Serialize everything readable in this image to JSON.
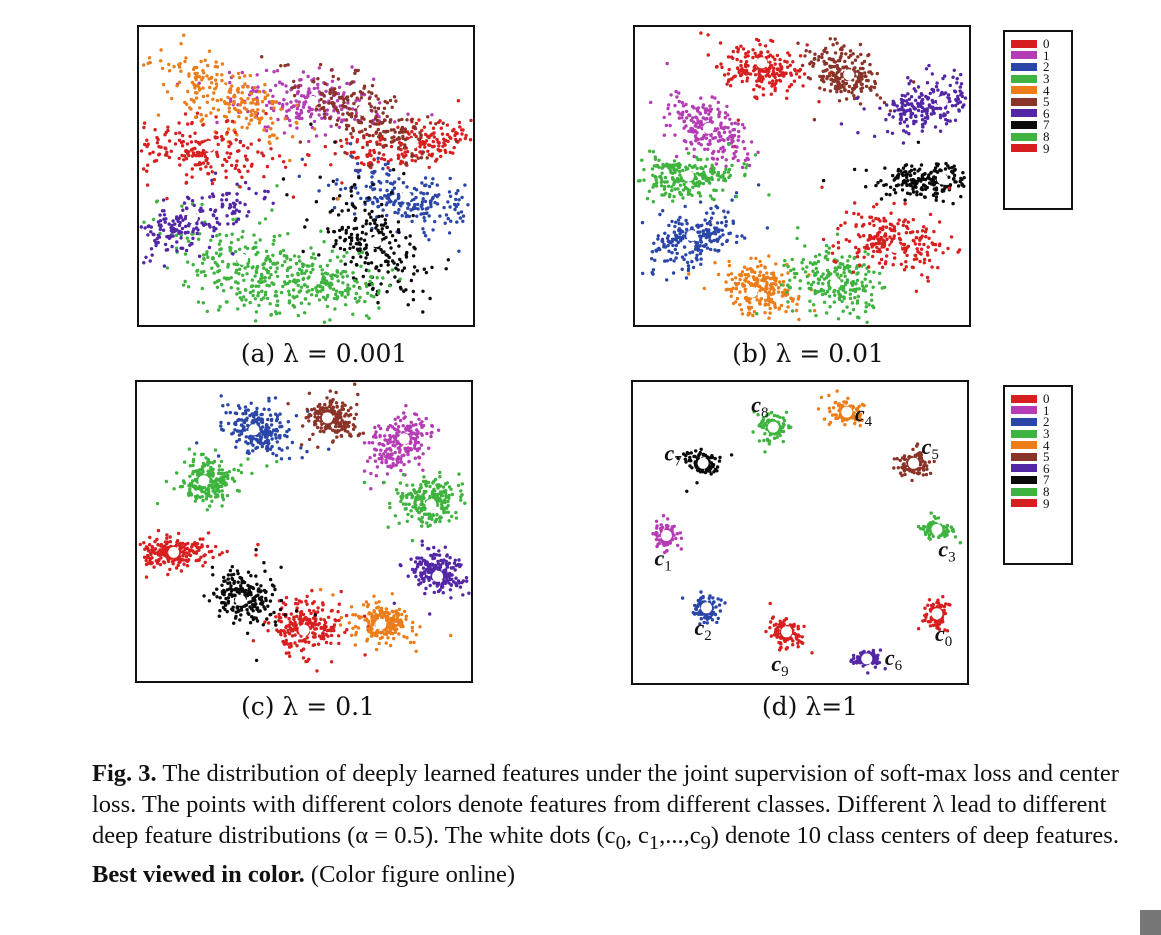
{
  "colors": {
    "0": "#d81f1f",
    "1": "#b43cb4",
    "2": "#2a46a8",
    "3": "#3fb33f",
    "4": "#ec7d18",
    "5": "#8a3328",
    "6": "#5326a5",
    "7": "#0a0a0a",
    "8": "#3fb33f",
    "9": "#d81f1f"
  },
  "legend": {
    "labels": [
      "0",
      "1",
      "2",
      "3",
      "4",
      "5",
      "6",
      "7",
      "8",
      "9"
    ]
  },
  "captions": {
    "a": "(a)  λ = 0.001",
    "b": "(b)  λ = 0.01",
    "c": "(c)  λ = 0.1",
    "d": "(d)  λ=1"
  },
  "figure_caption": {
    "label": "Fig. 3.",
    "text1": " The distribution of deeply learned features under the joint supervision of soft-max loss and center loss. The points with different colors denote features from different classes. Different λ lead to different deep feature distributions (α = 0.5). The white dots (c",
    "sub0": "0",
    "text2": ", c",
    "sub1": "1",
    "text3": ",...,c",
    "sub9": "9",
    "text4": ") denote 10 class centers of deep features. ",
    "bold_tail": "Best viewed in color.",
    "text5": " (Color figure online)"
  },
  "chart_data": [
    {
      "type": "scatter",
      "title": "(a) λ = 0.001",
      "legend": "none",
      "grid": false,
      "series": [
        {
          "name": "0",
          "center": [
            0.82,
            0.39
          ],
          "spread": [
            0.12,
            0.035
          ],
          "angle": -8
        },
        {
          "name": "1",
          "center": [
            0.51,
            0.26
          ],
          "spread": [
            0.05,
            0.12
          ],
          "angle": -85
        },
        {
          "name": "2",
          "center": [
            0.8,
            0.58
          ],
          "spread": [
            0.11,
            0.045
          ],
          "angle": 20
        },
        {
          "name": "3",
          "center": [
            0.31,
            0.8
          ],
          "spread": [
            0.07,
            0.12
          ],
          "angle": -60
        },
        {
          "name": "4",
          "center": [
            0.25,
            0.23
          ],
          "spread": [
            0.11,
            0.05
          ],
          "angle": 35
        },
        {
          "name": "5",
          "center": [
            0.67,
            0.29
          ],
          "spread": [
            0.045,
            0.11
          ],
          "angle": -55
        },
        {
          "name": "6",
          "center": [
            0.14,
            0.66
          ],
          "spread": [
            0.11,
            0.04
          ],
          "angle": -25
        },
        {
          "name": "7",
          "center": [
            0.7,
            0.72
          ],
          "spread": [
            0.06,
            0.12
          ],
          "angle": -35
        },
        {
          "name": "8",
          "center": [
            0.52,
            0.86
          ],
          "spread": [
            0.05,
            0.13
          ],
          "angle": -82
        },
        {
          "name": "9",
          "center": [
            0.17,
            0.42
          ],
          "spread": [
            0.14,
            0.05
          ],
          "angle": 5
        }
      ],
      "centers": [
        [
          0.82,
          0.39
        ],
        [
          0.52,
          0.25
        ],
        [
          0.8,
          0.57
        ],
        [
          0.31,
          0.78
        ],
        [
          0.25,
          0.21
        ],
        [
          0.67,
          0.28
        ],
        [
          0.16,
          0.64
        ],
        [
          0.71,
          0.72
        ],
        [
          0.53,
          0.84
        ],
        [
          0.21,
          0.4
        ]
      ]
    },
    {
      "type": "scatter",
      "title": "(b) λ = 0.01",
      "legend": "right",
      "grid": false,
      "series": [
        {
          "name": "0",
          "center": [
            0.38,
            0.14
          ],
          "spread": [
            0.04,
            0.06
          ],
          "angle": -70
        },
        {
          "name": "1",
          "center": [
            0.22,
            0.34
          ],
          "spread": [
            0.07,
            0.04
          ],
          "angle": 40
        },
        {
          "name": "2",
          "center": [
            0.18,
            0.71
          ],
          "spread": [
            0.07,
            0.04
          ],
          "angle": -30
        },
        {
          "name": "3",
          "center": [
            0.15,
            0.5
          ],
          "spread": [
            0.07,
            0.035
          ],
          "angle": 0
        },
        {
          "name": "4",
          "center": [
            0.37,
            0.88
          ],
          "spread": [
            0.04,
            0.06
          ],
          "angle": -60
        },
        {
          "name": "5",
          "center": [
            0.63,
            0.16
          ],
          "spread": [
            0.04,
            0.06
          ],
          "angle": -60
        },
        {
          "name": "6",
          "center": [
            0.88,
            0.26
          ],
          "spread": [
            0.07,
            0.035
          ],
          "angle": -20
        },
        {
          "name": "7",
          "center": [
            0.88,
            0.52
          ],
          "spread": [
            0.08,
            0.03
          ],
          "angle": 0
        },
        {
          "name": "8",
          "center": [
            0.6,
            0.86
          ],
          "spread": [
            0.05,
            0.07
          ],
          "angle": -80
        },
        {
          "name": "9",
          "center": [
            0.78,
            0.72
          ],
          "spread": [
            0.08,
            0.045
          ],
          "angle": 10
        }
      ],
      "centers": [
        [
          0.38,
          0.12
        ],
        [
          0.22,
          0.34
        ],
        [
          0.17,
          0.7
        ],
        [
          0.16,
          0.5
        ],
        [
          0.35,
          0.89
        ],
        [
          0.64,
          0.16
        ],
        [
          0.92,
          0.25
        ],
        [
          0.92,
          0.51
        ],
        [
          0.6,
          0.86
        ],
        [
          0.78,
          0.74
        ]
      ]
    },
    {
      "type": "scatter",
      "title": "(c) λ = 0.1",
      "legend": "none",
      "grid": false,
      "series": [
        {
          "name": "0",
          "center": [
            0.51,
            0.82
          ],
          "spread": [
            0.05,
            0.045
          ],
          "angle": 0
        },
        {
          "name": "1",
          "center": [
            0.79,
            0.2
          ],
          "spread": [
            0.05,
            0.035
          ],
          "angle": -40
        },
        {
          "name": "2",
          "center": [
            0.36,
            0.16
          ],
          "spread": [
            0.035,
            0.05
          ],
          "angle": -60
        },
        {
          "name": "3",
          "center": [
            0.87,
            0.4
          ],
          "spread": [
            0.045,
            0.04
          ],
          "angle": 0
        },
        {
          "name": "4",
          "center": [
            0.73,
            0.81
          ],
          "spread": [
            0.04,
            0.03
          ],
          "angle": 0
        },
        {
          "name": "5",
          "center": [
            0.58,
            0.12
          ],
          "spread": [
            0.03,
            0.04
          ],
          "angle": -70
        },
        {
          "name": "6",
          "center": [
            0.9,
            0.64
          ],
          "spread": [
            0.03,
            0.04
          ],
          "angle": -70
        },
        {
          "name": "7",
          "center": [
            0.32,
            0.72
          ],
          "spread": [
            0.04,
            0.05
          ],
          "angle": -50
        },
        {
          "name": "8",
          "center": [
            0.21,
            0.33
          ],
          "spread": [
            0.04,
            0.035
          ],
          "angle": 0
        },
        {
          "name": "9",
          "center": [
            0.11,
            0.57
          ],
          "spread": [
            0.055,
            0.025
          ],
          "angle": 0
        }
      ],
      "centers": [
        [
          0.5,
          0.83
        ],
        [
          0.8,
          0.19
        ],
        [
          0.35,
          0.16
        ],
        [
          0.88,
          0.41
        ],
        [
          0.73,
          0.81
        ],
        [
          0.57,
          0.12
        ],
        [
          0.9,
          0.65
        ],
        [
          0.31,
          0.73
        ],
        [
          0.2,
          0.33
        ],
        [
          0.11,
          0.57
        ]
      ]
    },
    {
      "type": "scatter",
      "title": "(d) λ=1",
      "legend": "right",
      "grid": false,
      "series": [
        {
          "name": "0",
          "center": [
            0.91,
            0.77
          ],
          "spread": [
            0.015,
            0.022
          ],
          "angle": 0
        },
        {
          "name": "1",
          "center": [
            0.1,
            0.51
          ],
          "spread": [
            0.017,
            0.023
          ],
          "angle": 0
        },
        {
          "name": "2",
          "center": [
            0.22,
            0.75
          ],
          "spread": [
            0.017,
            0.023
          ],
          "angle": 0
        },
        {
          "name": "3",
          "center": [
            0.91,
            0.49
          ],
          "spread": [
            0.022,
            0.018
          ],
          "angle": 0
        },
        {
          "name": "4",
          "center": [
            0.64,
            0.1
          ],
          "spread": [
            0.017,
            0.025
          ],
          "angle": -60
        },
        {
          "name": "5",
          "center": [
            0.84,
            0.27
          ],
          "spread": [
            0.022,
            0.02
          ],
          "angle": 0
        },
        {
          "name": "6",
          "center": [
            0.7,
            0.92
          ],
          "spread": [
            0.02,
            0.014
          ],
          "angle": 0
        },
        {
          "name": "7",
          "center": [
            0.21,
            0.27
          ],
          "spread": [
            0.017,
            0.025
          ],
          "angle": -60
        },
        {
          "name": "8",
          "center": [
            0.42,
            0.15
          ],
          "spread": [
            0.024,
            0.02
          ],
          "angle": 0
        },
        {
          "name": "9",
          "center": [
            0.46,
            0.83
          ],
          "spread": [
            0.024,
            0.027
          ],
          "angle": 0
        }
      ],
      "centers": [
        [
          0.91,
          0.77
        ],
        [
          0.1,
          0.51
        ],
        [
          0.22,
          0.75
        ],
        [
          0.91,
          0.49
        ],
        [
          0.64,
          0.1
        ],
        [
          0.84,
          0.27
        ],
        [
          0.7,
          0.92
        ],
        [
          0.21,
          0.27
        ],
        [
          0.42,
          0.15
        ],
        [
          0.46,
          0.83
        ]
      ],
      "center_labels": [
        {
          "base": "c",
          "sub": "0",
          "anchor": [
            0.93,
            0.86
          ]
        },
        {
          "base": "c",
          "sub": "1",
          "anchor": [
            0.09,
            0.61
          ]
        },
        {
          "base": "c",
          "sub": "2",
          "anchor": [
            0.21,
            0.84
          ]
        },
        {
          "base": "c",
          "sub": "3",
          "anchor": [
            0.94,
            0.58
          ]
        },
        {
          "base": "c",
          "sub": "4",
          "anchor": [
            0.69,
            0.13
          ]
        },
        {
          "base": "c",
          "sub": "5",
          "anchor": [
            0.89,
            0.24
          ]
        },
        {
          "base": "c",
          "sub": "6",
          "anchor": [
            0.78,
            0.94
          ]
        },
        {
          "base": "c",
          "sub": "7",
          "anchor": [
            0.12,
            0.26
          ]
        },
        {
          "base": "c",
          "sub": "8",
          "anchor": [
            0.38,
            0.1
          ]
        },
        {
          "base": "c",
          "sub": "9",
          "anchor": [
            0.44,
            0.96
          ]
        }
      ]
    }
  ]
}
